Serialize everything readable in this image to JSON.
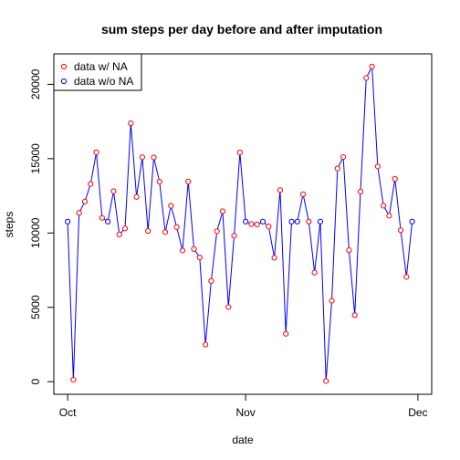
{
  "chart_data": {
    "type": "line",
    "title": "sum steps per day before and after imputation",
    "xlabel": "date",
    "ylabel": "steps",
    "x_ticks": [
      "Oct",
      "Nov",
      "Dec"
    ],
    "x_tick_values": [
      0,
      31,
      61
    ],
    "y_ticks": [
      "0",
      "5000",
      "10000",
      "15000",
      "20000"
    ],
    "y_tick_values": [
      0,
      5000,
      10000,
      15000,
      20000
    ],
    "xlim": [
      -2.4,
      63.4
    ],
    "ylim": [
      -850,
      22050
    ],
    "grid": false,
    "legend_position": "top-left",
    "line_color": "#0000ff",
    "series": [
      {
        "name": "data w/ NA",
        "color": "#ff0000"
      },
      {
        "name": "data w/o NA",
        "color": "#0000ff"
      }
    ],
    "x": [
      0,
      1,
      2,
      3,
      4,
      5,
      6,
      7,
      8,
      9,
      10,
      11,
      12,
      13,
      14,
      15,
      16,
      17,
      18,
      19,
      20,
      21,
      22,
      23,
      24,
      25,
      26,
      27,
      28,
      29,
      30,
      31,
      32,
      33,
      34,
      35,
      36,
      37,
      38,
      39,
      40,
      41,
      42,
      43,
      44,
      45,
      46,
      47,
      48,
      49,
      50,
      51,
      52,
      53,
      54,
      55,
      56,
      57,
      58,
      59,
      60
    ],
    "values": [
      10766,
      126,
      11352,
      12116,
      13294,
      15420,
      11015,
      10766,
      12811,
      9900,
      10304,
      17382,
      12426,
      15098,
      10139,
      15084,
      13452,
      10056,
      11829,
      10395,
      8821,
      13460,
      8918,
      8355,
      2492,
      6778,
      10119,
      11458,
      5018,
      9819,
      15414,
      10766,
      10600,
      10571,
      10766,
      10439,
      8334,
      12883,
      3219,
      10766,
      10766,
      12608,
      10765,
      7336,
      10766,
      41,
      5441,
      14339,
      15110,
      8841,
      4472,
      12787,
      20427,
      21194,
      14478,
      11834,
      11162,
      13646,
      10183,
      7047,
      10766
    ],
    "imputed": [
      true,
      false,
      false,
      false,
      false,
      false,
      false,
      true,
      false,
      false,
      false,
      false,
      false,
      false,
      false,
      false,
      false,
      false,
      false,
      false,
      false,
      false,
      false,
      false,
      false,
      false,
      false,
      false,
      false,
      false,
      false,
      true,
      false,
      false,
      true,
      false,
      false,
      false,
      false,
      true,
      true,
      false,
      false,
      false,
      true,
      false,
      false,
      false,
      false,
      false,
      false,
      false,
      false,
      false,
      false,
      false,
      false,
      false,
      false,
      false,
      true
    ]
  }
}
